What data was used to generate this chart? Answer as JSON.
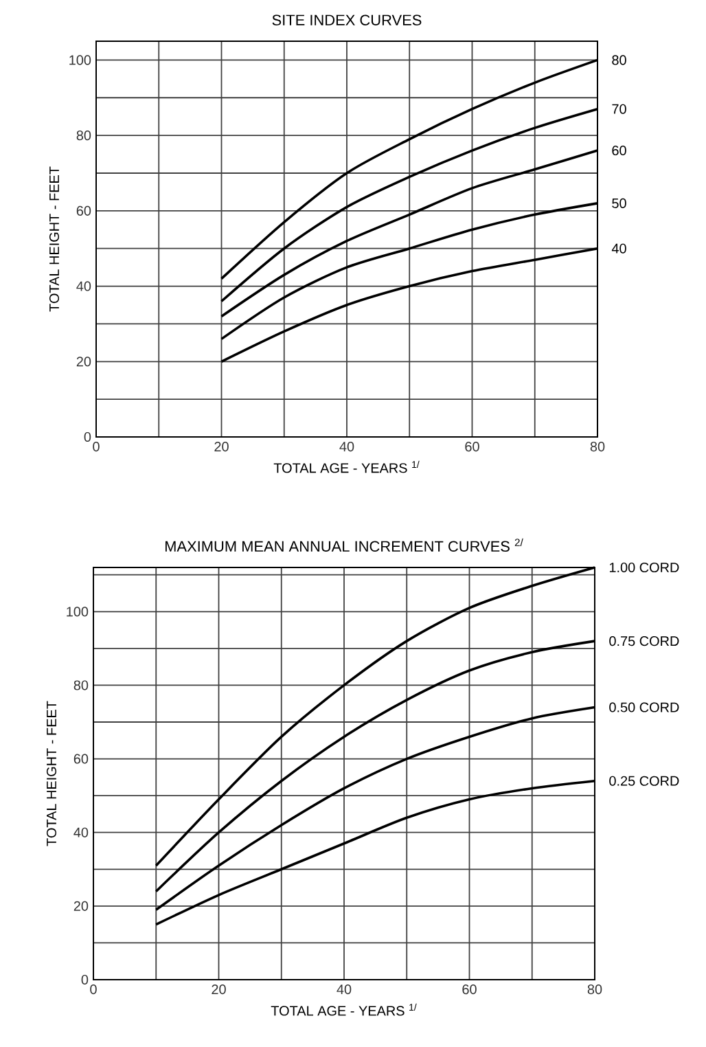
{
  "chart_data": [
    {
      "type": "line",
      "title": "SITE INDEX CURVES",
      "xlabel": "TOTAL AGE - YEARS $^{1/}$",
      "ylabel": "TOTAL HEIGHT - FEET",
      "x": [
        20,
        30,
        40,
        50,
        60,
        70,
        80
      ],
      "series": [
        {
          "name": "80",
          "color": "#000000",
          "values": [
            42,
            57,
            70,
            79,
            87,
            94,
            100
          ]
        },
        {
          "name": "70",
          "color": "#000000",
          "values": [
            36,
            50,
            61,
            69,
            76,
            82,
            87
          ]
        },
        {
          "name": "60",
          "color": "#000000",
          "values": [
            32,
            43,
            52,
            59,
            66,
            71,
            76
          ]
        },
        {
          "name": "50",
          "color": "#000000",
          "values": [
            26,
            37,
            45,
            50,
            55,
            59,
            62
          ]
        },
        {
          "name": "40",
          "color": "#000000",
          "values": [
            20,
            28,
            35,
            40,
            44,
            47,
            50
          ]
        }
      ],
      "xlim": [
        0,
        80
      ],
      "ylim": [
        0,
        105
      ],
      "xticks": [
        0,
        {
          "value": 10,
          "label": null
        },
        20,
        {
          "value": 30,
          "label": null
        },
        40,
        {
          "value": 50,
          "label": null
        },
        60,
        {
          "value": 70,
          "label": null
        },
        80
      ],
      "yticks": [
        0,
        {
          "value": 10,
          "label": null
        },
        20,
        {
          "value": 30,
          "label": null
        },
        40,
        {
          "value": 50,
          "label": null
        },
        60,
        {
          "value": 70,
          "label": null
        },
        80,
        {
          "value": 90,
          "label": null
        },
        100
      ],
      "grid": true
    },
    {
      "type": "line",
      "title": "MAXIMUM MEAN ANNUAL INCREMENT CURVES $^{2/}$",
      "xlabel": "TOTAL AGE - YEARS $^{1/}$",
      "ylabel": "TOTAL HEIGHT - FEET",
      "x": [
        10,
        20,
        30,
        40,
        50,
        60,
        70,
        80
      ],
      "series": [
        {
          "name": "1.00 CORD",
          "color": "#000000",
          "values": [
            31,
            49,
            66,
            80,
            92,
            101,
            107,
            112
          ]
        },
        {
          "name": "0.75 CORD",
          "color": "#000000",
          "values": [
            24,
            40,
            54,
            66,
            76,
            84,
            89,
            92
          ]
        },
        {
          "name": "0.50 CORD",
          "color": "#000000",
          "values": [
            19,
            31,
            42,
            52,
            60,
            66,
            71,
            74
          ]
        },
        {
          "name": "0.25 CORD",
          "color": "#000000",
          "values": [
            15,
            23,
            30,
            37,
            44,
            49,
            52,
            54
          ]
        }
      ],
      "xlim": [
        0,
        80
      ],
      "ylim": [
        0,
        112
      ],
      "xticks": [
        0,
        {
          "value": 10,
          "label": null
        },
        20,
        {
          "value": 30,
          "label": null
        },
        40,
        {
          "value": 50,
          "label": null
        },
        60,
        {
          "value": 70,
          "label": null
        },
        80
      ],
      "yticks": [
        0,
        {
          "value": 10,
          "label": null
        },
        20,
        {
          "value": 30,
          "label": null
        },
        40,
        {
          "value": 50,
          "label": null
        },
        60,
        {
          "value": 70,
          "label": null
        },
        80,
        {
          "value": 90,
          "label": null
        },
        100,
        {
          "value": 110,
          "label": null
        }
      ],
      "grid": true
    }
  ]
}
